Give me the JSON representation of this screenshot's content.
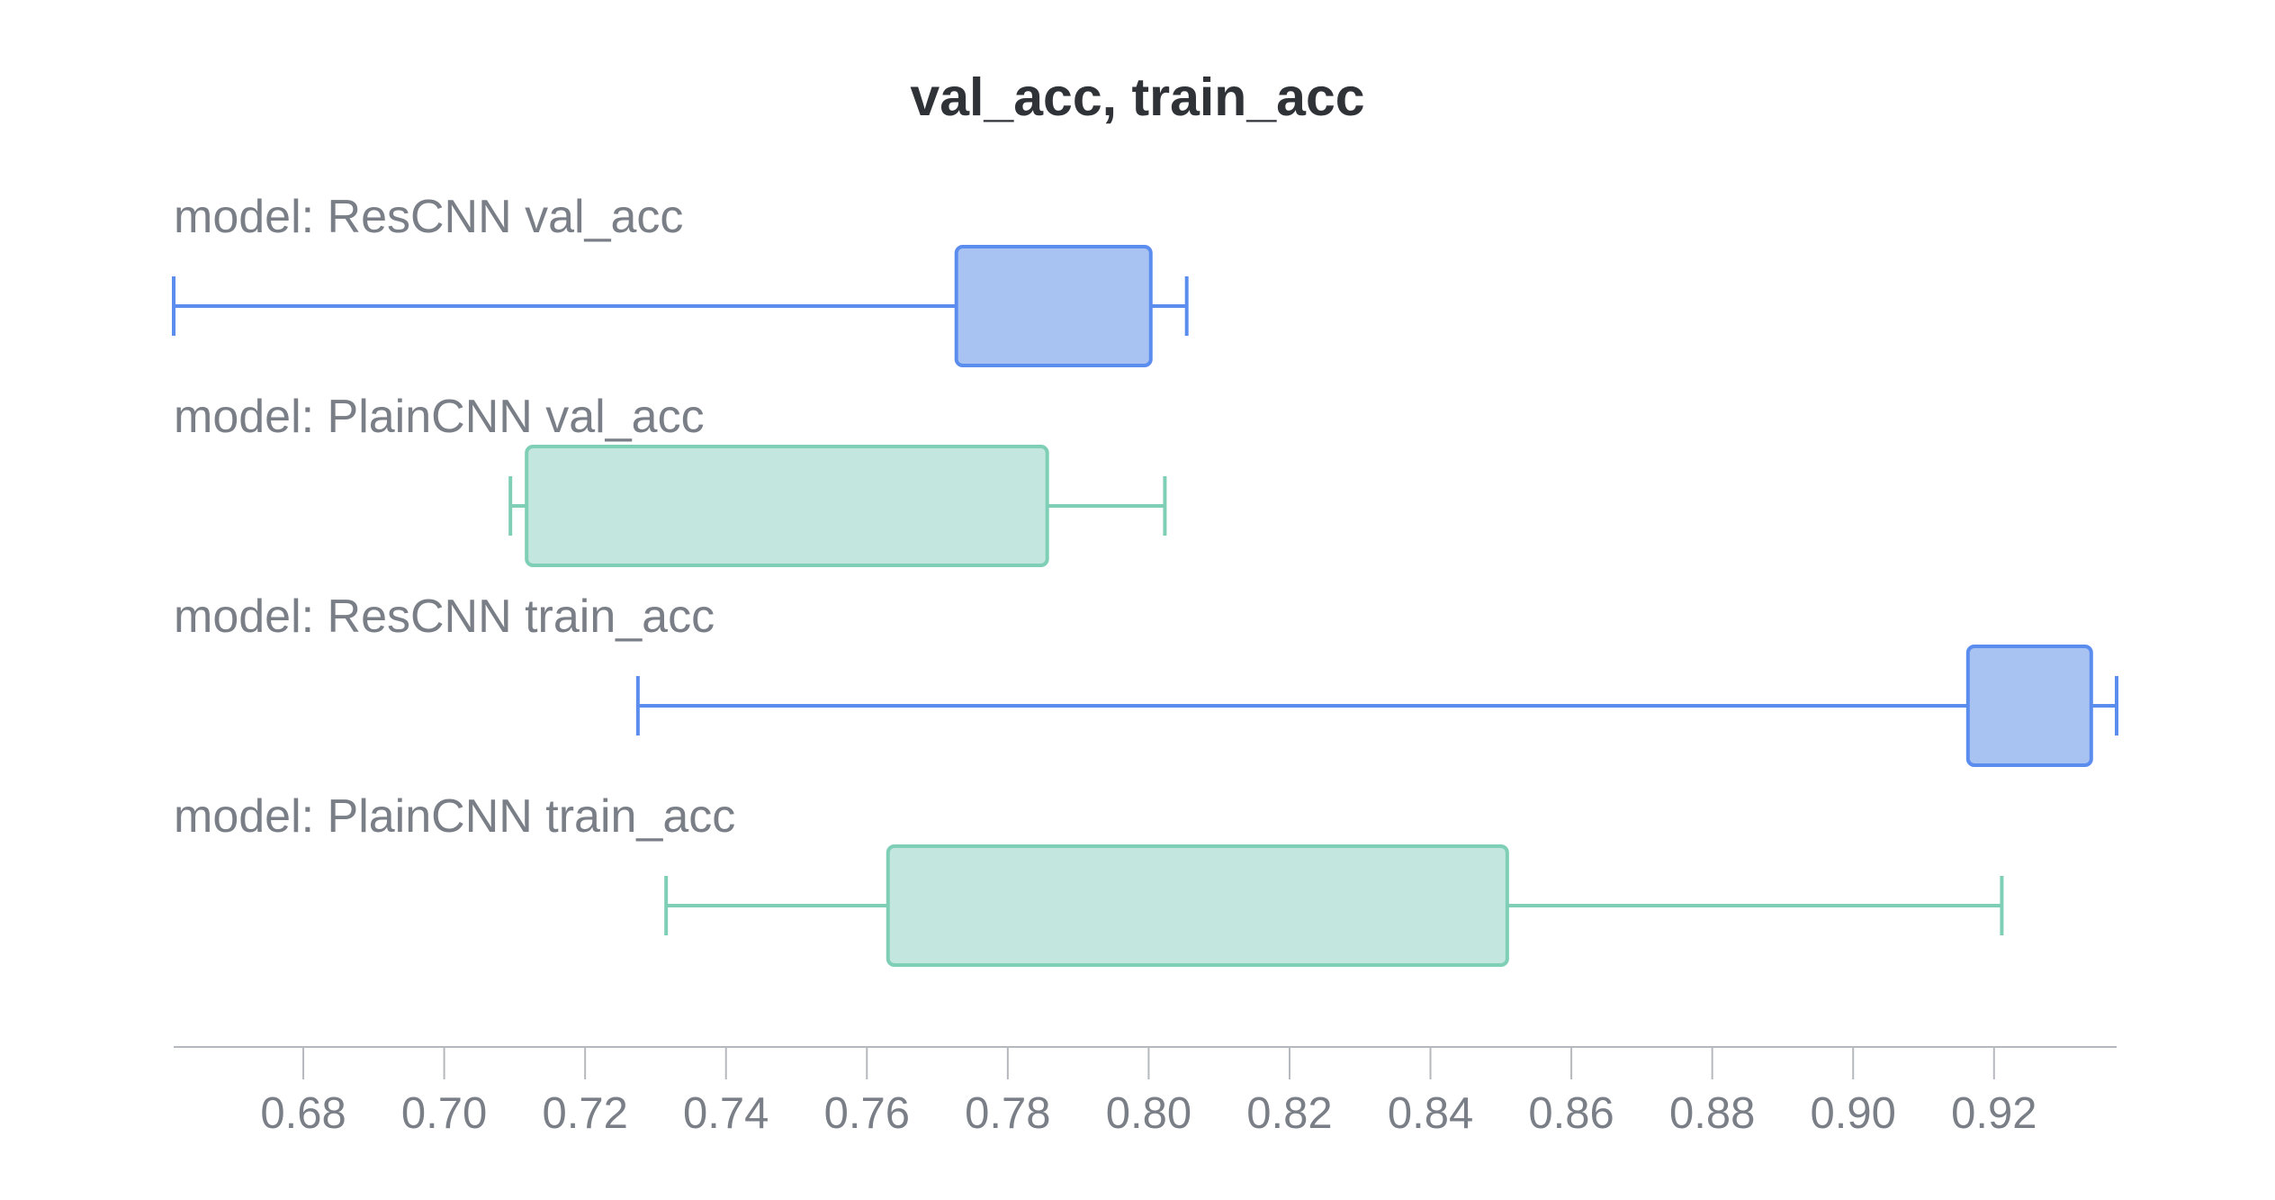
{
  "chart_data": {
    "type": "boxplot",
    "title": "val_acc, train_acc",
    "orientation": "horizontal",
    "xlim": [
      0.6616,
      0.9374
    ],
    "xticks": [
      "0.68",
      "0.70",
      "0.72",
      "0.74",
      "0.76",
      "0.78",
      "0.80",
      "0.82",
      "0.84",
      "0.86",
      "0.88",
      "0.90",
      "0.92"
    ],
    "grid": false,
    "series": [
      {
        "name": "model: ResCNN val_acc",
        "color": "#5b8def",
        "fill": "#a8c3f2",
        "min": 0.6616,
        "q1": 0.7727,
        "q3": 0.8003,
        "max": 0.8054
      },
      {
        "name": "model: PlainCNN val_acc",
        "color": "#7fcfb7",
        "fill": "#c3e7de",
        "min": 0.7094,
        "q1": 0.7117,
        "q3": 0.7856,
        "max": 0.8023
      },
      {
        "name": "model: ResCNN train_acc",
        "color": "#5b8def",
        "fill": "#a8c3f2",
        "min": 0.7275,
        "q1": 0.9163,
        "q3": 0.9338,
        "max": 0.9374
      },
      {
        "name": "model: PlainCNN train_acc",
        "color": "#7fcfb7",
        "fill": "#c3e7de",
        "min": 0.7315,
        "q1": 0.763,
        "q3": 0.8509,
        "max": 0.9211
      }
    ]
  }
}
